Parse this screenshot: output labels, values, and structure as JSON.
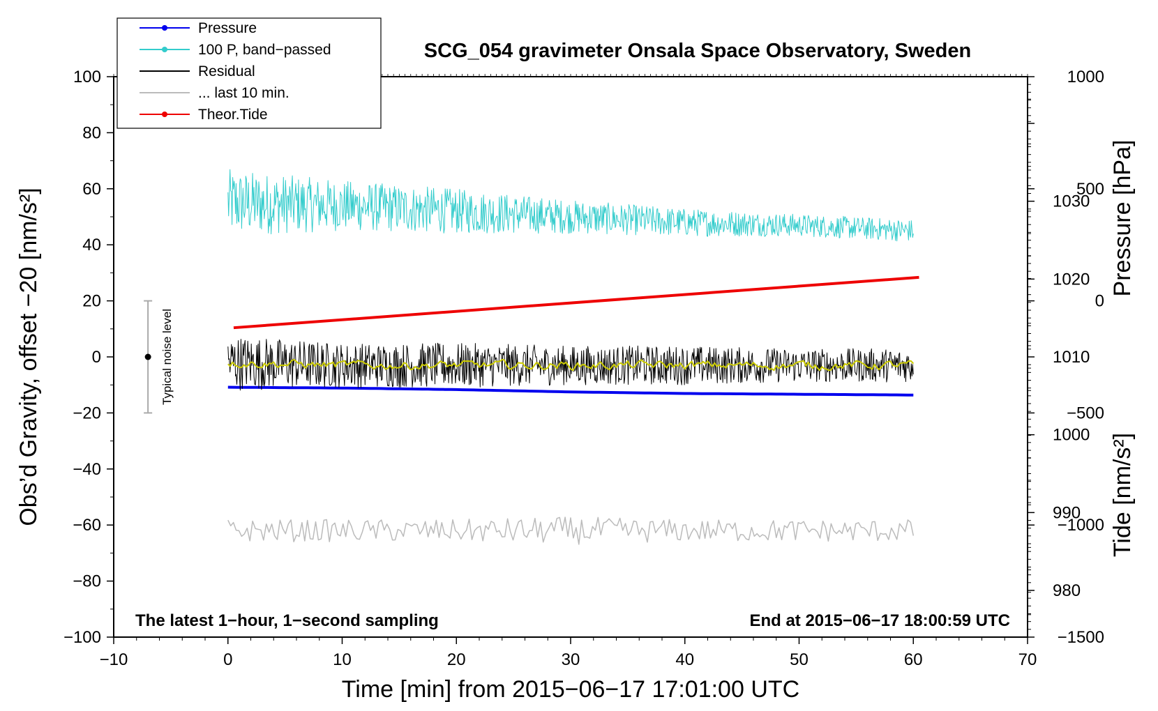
{
  "chart_data": {
    "type": "line",
    "title": "SCG_054 gravimeter Onsala Space Observatory, Sweden",
    "xlabel": "Time [min] from 2015−06−17 17:01:00 UTC",
    "ylabel": "Obs’d Gravity, offset −20 [nm/s²]",
    "xlim": [
      -10,
      70
    ],
    "ylim": [
      -100,
      100
    ],
    "x_ticks": [
      -10,
      0,
      10,
      20,
      30,
      40,
      50,
      60,
      70
    ],
    "x_tick_labels": [
      "−10",
      "0",
      "10",
      "20",
      "30",
      "40",
      "50",
      "60",
      "70"
    ],
    "y_ticks": [
      -100,
      -80,
      -60,
      -40,
      -20,
      0,
      20,
      40,
      60,
      80,
      100
    ],
    "y_tick_labels": [
      "−100",
      "−80",
      "−60",
      "−40",
      "−20",
      "0",
      "20",
      "40",
      "60",
      "80",
      "100"
    ],
    "pressure_axis": {
      "label": "Pressure [hPa]",
      "range": [
        974,
        1046
      ],
      "ticks": [
        980,
        990,
        1000,
        1010,
        1020,
        1030
      ],
      "tick_labels": [
        "980",
        "990",
        "1000",
        "1010",
        "1020",
        "1030"
      ]
    },
    "tide_axis": {
      "label": "Tide [nm/s²]",
      "range": [
        -1500,
        1000
      ],
      "ticks": [
        -1500,
        -1000,
        -500,
        0,
        500,
        1000
      ],
      "tick_labels": [
        "−1500",
        "−1000",
        "−500",
        "0",
        "500",
        "1000"
      ]
    },
    "legend": {
      "placement": "top-left",
      "entries": [
        {
          "label": "Pressure",
          "color": "#0000ee",
          "marker": true
        },
        {
          "label": "100 P, band−passed",
          "color": "#33cccc",
          "marker": true
        },
        {
          "label": "Residual",
          "color": "#000000",
          "marker": false
        },
        {
          "label": "... last 10 min.",
          "color": "#bbbbbb",
          "marker": false
        },
        {
          "label": "Theor.Tide",
          "color": "#ee0000",
          "marker": true
        }
      ]
    },
    "series": [
      {
        "name": "Pressure",
        "axis": "pressure",
        "color": "#0000ee",
        "x": [
          0,
          10,
          20,
          30,
          40,
          50,
          60
        ],
        "values": [
          1006.1,
          1006.0,
          1005.8,
          1005.5,
          1005.3,
          1005.2,
          1005.1
        ]
      },
      {
        "name": "100 P, band-passed",
        "axis": "gravity",
        "color": "#33cccc",
        "x": [
          0,
          10,
          20,
          30,
          40,
          50,
          60
        ],
        "center": [
          55,
          54,
          52,
          50,
          48,
          47,
          45
        ],
        "amplitude": [
          12,
          9,
          8,
          6,
          5,
          4,
          4
        ]
      },
      {
        "name": "Residual",
        "axis": "gravity",
        "color": "#000000",
        "x": [
          0,
          10,
          20,
          30,
          40,
          50,
          60
        ],
        "center": [
          -2,
          -3,
          -3,
          -3,
          -3,
          -3,
          -3
        ],
        "amplitude": [
          10,
          8,
          8,
          7,
          7,
          6,
          6
        ]
      },
      {
        "name": "Residual smoothed",
        "axis": "gravity",
        "color": "#cccc00",
        "x": [
          0,
          10,
          20,
          30,
          40,
          50,
          60
        ],
        "center": [
          -2,
          -3,
          -3,
          -3,
          -3,
          -3,
          -3
        ],
        "amplitude": [
          3,
          3,
          3,
          3,
          3,
          3,
          3
        ]
      },
      {
        "name": "... last 10 min.",
        "axis": "gravity",
        "color": "#bbbbbb",
        "x": [
          0,
          10,
          20,
          30,
          40,
          50,
          60
        ],
        "center": [
          -62,
          -62,
          -62,
          -62,
          -62,
          -62,
          -62
        ],
        "amplitude": [
          4,
          4,
          4,
          5,
          4,
          4,
          4
        ]
      },
      {
        "name": "Theor.Tide",
        "axis": "tide",
        "color": "#ee0000",
        "x": [
          0.5,
          60.5
        ],
        "values": [
          -120,
          105
        ]
      }
    ],
    "noise_indicator": {
      "label": "Typical noise level",
      "x": -7,
      "center": 0,
      "range": [
        -20,
        20
      ]
    },
    "annotations": {
      "left": "The latest 1−hour, 1−second sampling",
      "right": "End at 2015−06−17 18:00:59 UTC"
    }
  }
}
